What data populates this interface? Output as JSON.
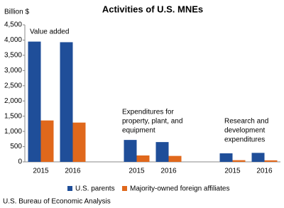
{
  "chart_data": {
    "type": "bar",
    "title": "Activities of U.S. MNEs",
    "y_label": "Billion $",
    "categories": [
      "2015",
      "2016",
      null,
      "2015",
      "2016",
      null,
      "2015",
      "2016"
    ],
    "series": [
      {
        "name": "U.S. parents",
        "color": "#1f4e99",
        "values": [
          3950,
          3930,
          null,
          720,
          650,
          null,
          280,
          295
        ]
      },
      {
        "name": "Majority-owned foreign affiliates",
        "color": "#e0681c",
        "values": [
          1360,
          1290,
          null,
          210,
          195,
          null,
          55,
          50
        ]
      }
    ],
    "ylim": [
      0,
      4500
    ],
    "yticks": [
      0,
      {
        "value": 500,
        "label": "500"
      },
      {
        "value": 1000,
        "label": "1,000"
      },
      {
        "value": 1500,
        "label": "1,500"
      },
      {
        "value": 2000,
        "label": "2,000"
      },
      {
        "value": 2500,
        "label": "2,500"
      },
      {
        "value": 3000,
        "label": "3,000"
      },
      {
        "value": 3500,
        "label": "3,500"
      },
      {
        "value": 4000,
        "label": "4,000"
      },
      {
        "value": 4500,
        "label": "4,500"
      }
    ],
    "annotations": [
      [
        "Value added"
      ],
      [
        "Expenditures for",
        "property, plant, and",
        "equipment"
      ],
      [
        "Research and",
        "development",
        "expenditures"
      ]
    ],
    "source": "U.S. Bureau of Economic Analysis"
  }
}
